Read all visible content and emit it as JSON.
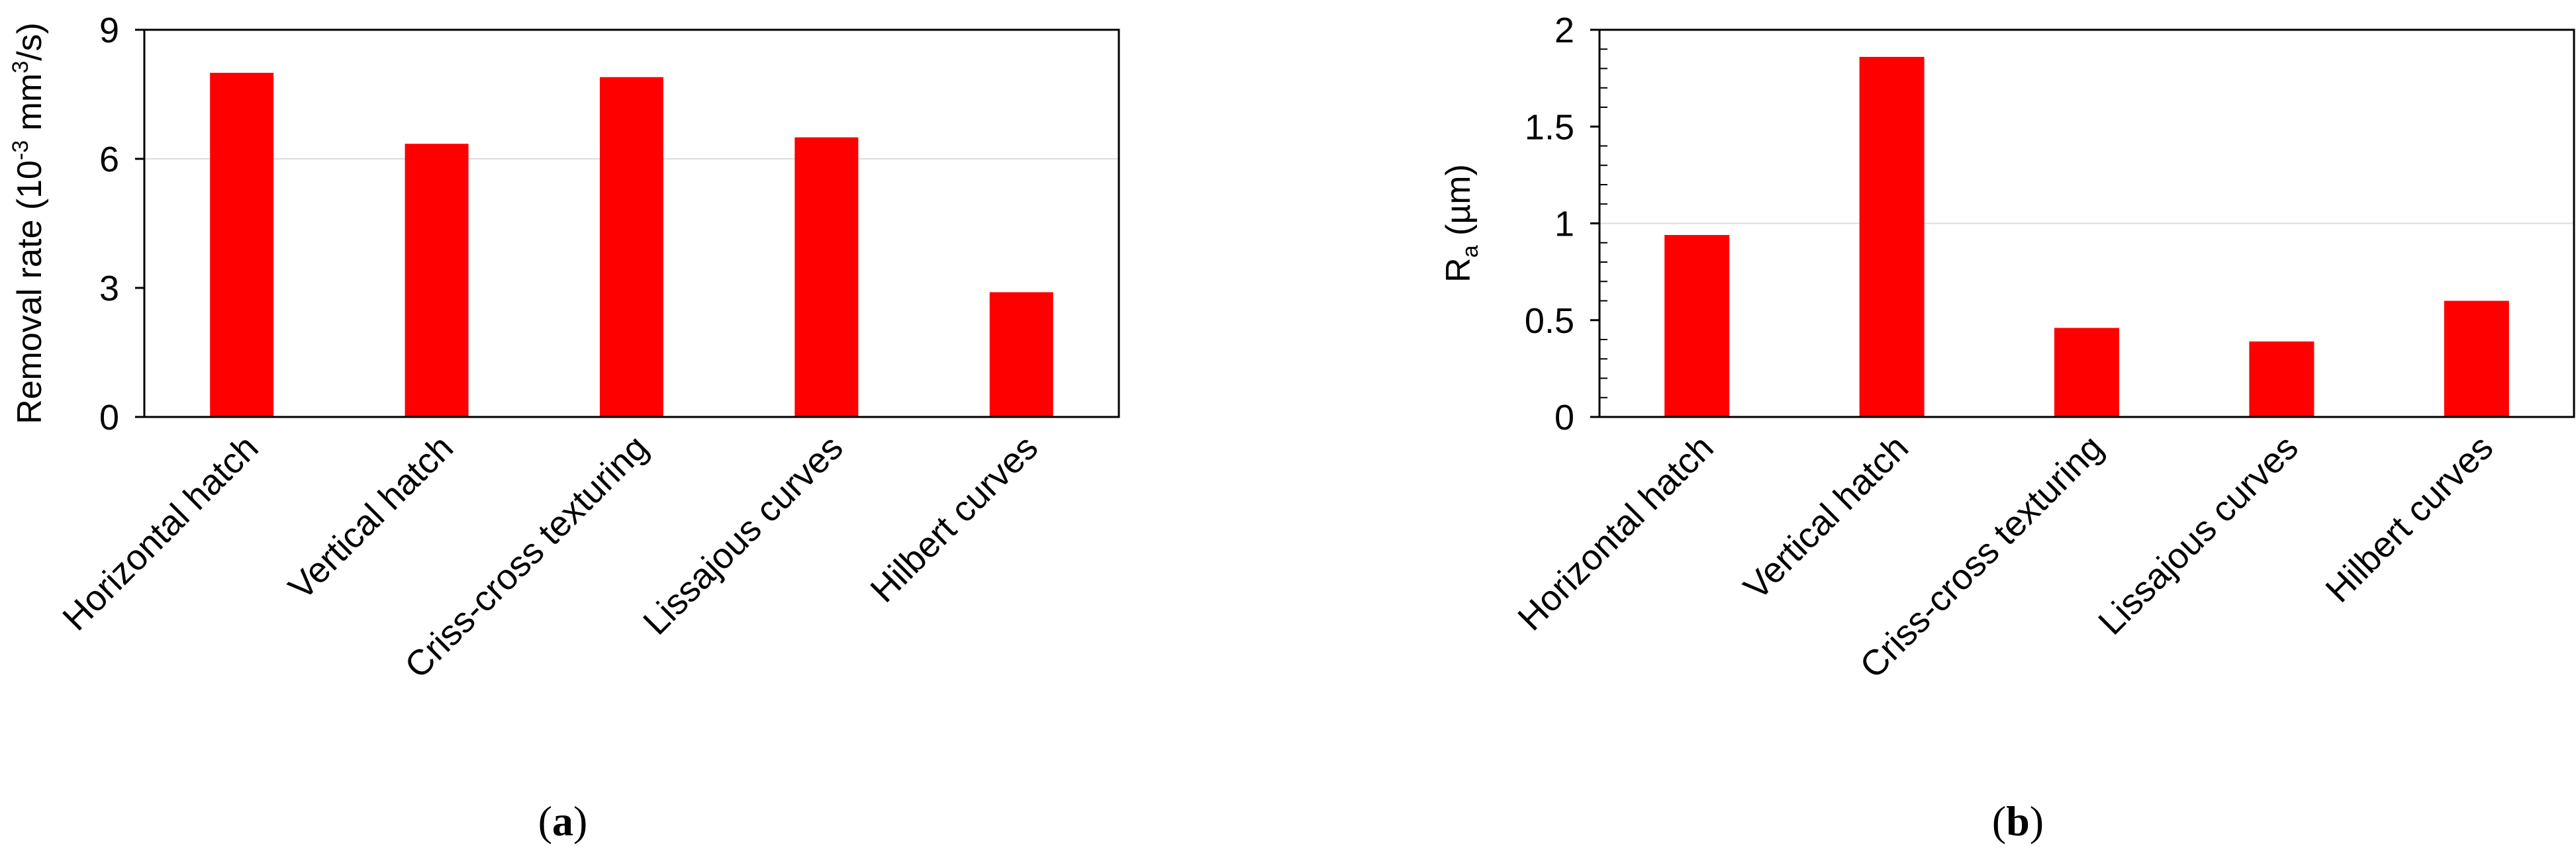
{
  "chart_data": [
    {
      "type": "bar",
      "panel_label": "a",
      "categories": [
        "Horizontal hatch",
        "Vertical hatch",
        "Criss-cross texturing",
        "Lissajous curves",
        "Hilbert curves"
      ],
      "values": [
        8.0,
        6.35,
        7.9,
        6.5,
        2.9
      ],
      "ylabel_parts": [
        "Removal rate (10",
        "-3",
        " mm",
        "3",
        "/s)"
      ],
      "ylim": [
        0,
        9
      ],
      "yticks": [
        0,
        3,
        6,
        9
      ],
      "ytick_labels": [
        "0",
        "3",
        "6",
        "9"
      ],
      "minor_ticks": false,
      "gridlines": [
        6
      ],
      "grid": false,
      "bar_color": "#ff0000"
    },
    {
      "type": "bar",
      "panel_label": "b",
      "categories": [
        "Horizontal hatch",
        "Vertical hatch",
        "Criss-cross texturing",
        "Lissajous curves",
        "Hilbert curves"
      ],
      "values": [
        0.94,
        1.86,
        0.46,
        0.39,
        0.6
      ],
      "ylabel_parts": [
        "R",
        "a",
        " (µm)"
      ],
      "ylim": [
        0,
        2
      ],
      "yticks": [
        0,
        0.5,
        1,
        1.5,
        2
      ],
      "ytick_labels": [
        "0",
        "0.5",
        "1",
        "1.5",
        "2"
      ],
      "minor_ticks": true,
      "gridlines": [
        1
      ],
      "grid": false,
      "bar_color": "#ff0000"
    }
  ]
}
